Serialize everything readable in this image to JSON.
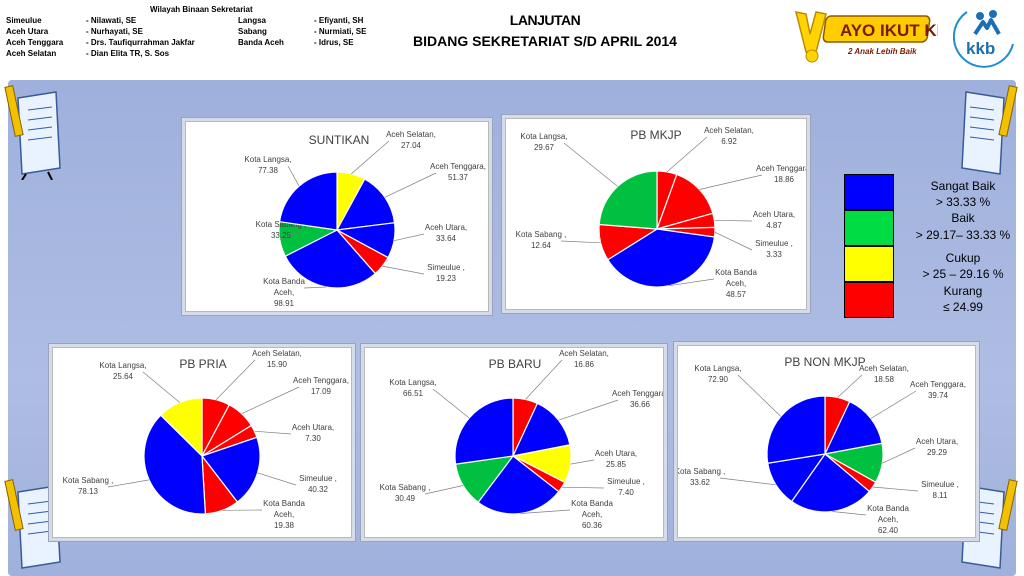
{
  "header": {
    "region_title": "Wilayah Binaan Sekretariat",
    "regions": [
      {
        "area": "Simeulue",
        "officer": "- Nilawati, SE",
        "area2": "Langsa",
        "officer2": "- Efiyanti, SH"
      },
      {
        "area": "Aceh Utara",
        "officer": "- Nurhayati, SE",
        "area2": "Sabang",
        "officer2": "- Nurmiati, SE"
      },
      {
        "area": "Aceh Tenggara",
        "officer": "-  Drs. Taufiqurrahman Jakfar",
        "area2": "Banda Aceh",
        "officer2": "- Idrus, SE"
      },
      {
        "area": "Aceh Selatan",
        "officer": "-  Dian Elita TR, S. Sos",
        "area2": "",
        "officer2": ""
      }
    ],
    "title_line1": "LANJUTAN",
    "title_line2": "BIDANG SEKRETARIAT S/D  APRIL 2014",
    "logo_ayo_text": "AYO IKUT KB",
    "logo_ayo_sub": "2 Anak Lebih Baik",
    "logo_kkb_text": "kkb"
  },
  "colors": {
    "blue": "#0000ff",
    "green": "#00c040",
    "yellow": "#ffff00",
    "red": "#ff0000"
  },
  "legend": [
    {
      "color": "#0000ff",
      "label": "Sangat Baik",
      "range": "> 33.33  %"
    },
    {
      "color": "#00dd44",
      "label": "Baik",
      "range": "> 29.17– 33.33 %"
    },
    {
      "color": "#ffff00",
      "label": "Cukup",
      "range": "> 25 – 29.16 %"
    },
    {
      "color": "#ff0000",
      "label": "Kurang",
      "range": "≤ 24.99"
    }
  ],
  "chart_data": [
    {
      "type": "pie",
      "title": "SUNTIKAN",
      "slices": [
        {
          "name": "Aceh Selatan,",
          "value": 27.04,
          "color": "#ffff00"
        },
        {
          "name": "Aceh Tenggara,",
          "value": 51.37,
          "color": "#0000ff"
        },
        {
          "name": "Aceh Utara,",
          "value": 33.64,
          "color": "#0000ff"
        },
        {
          "name": "Simeulue ,",
          "value": 19.23,
          "color": "#ff0000"
        },
        {
          "name": "Kota Banda Aceh,",
          "value": 98.91,
          "color": "#0000ff"
        },
        {
          "name": "Kota Sabang ,",
          "value": 33.25,
          "color": "#00c040"
        },
        {
          "name": "Kota Langsa,",
          "value": 77.38,
          "color": "#0000ff"
        }
      ]
    },
    {
      "type": "pie",
      "title": "PB  MKJP",
      "slices": [
        {
          "name": "Aceh Selatan,",
          "value": 6.92,
          "color": "#ff0000"
        },
        {
          "name": "Aceh Tenggara,",
          "value": 18.86,
          "color": "#ff0000"
        },
        {
          "name": "Aceh Utara,",
          "value": 4.87,
          "color": "#ff0000"
        },
        {
          "name": "Simeulue ,",
          "value": 3.33,
          "color": "#ff0000"
        },
        {
          "name": "Kota Banda Aceh,",
          "value": 48.57,
          "color": "#0000ff"
        },
        {
          "name": "Kota Sabang ,",
          "value": 12.64,
          "color": "#ff0000"
        },
        {
          "name": "Kota Langsa,",
          "value": 29.67,
          "color": "#00c040"
        }
      ]
    },
    {
      "type": "pie",
      "title": "PB PRIA",
      "slices": [
        {
          "name": "Aceh Selatan,",
          "value": 15.9,
          "color": "#ff0000"
        },
        {
          "name": "Aceh Tenggara,",
          "value": 17.09,
          "color": "#ff0000"
        },
        {
          "name": "Aceh Utara,",
          "value": 7.3,
          "color": "#ff0000"
        },
        {
          "name": "Simeulue ,",
          "value": 40.32,
          "color": "#0000ff"
        },
        {
          "name": "Kota Banda Aceh,",
          "value": 19.38,
          "color": "#ff0000"
        },
        {
          "name": "Kota Sabang ,",
          "value": 78.13,
          "color": "#0000ff"
        },
        {
          "name": "Kota Langsa,",
          "value": 25.64,
          "color": "#ffff00"
        }
      ]
    },
    {
      "type": "pie",
      "title": "PB BARU",
      "slices": [
        {
          "name": "Aceh Selatan,",
          "value": 16.86,
          "color": "#ff0000"
        },
        {
          "name": "Aceh Tenggara,",
          "value": 36.66,
          "color": "#0000ff"
        },
        {
          "name": "Aceh Utara,",
          "value": 25.85,
          "color": "#ffff00"
        },
        {
          "name": "Simeulue ,",
          "value": 7.4,
          "color": "#ff0000"
        },
        {
          "name": "Kota Banda Aceh,",
          "value": 60.36,
          "color": "#0000ff"
        },
        {
          "name": "Kota Sabang ,",
          "value": 30.49,
          "color": "#00c040"
        },
        {
          "name": "Kota Langsa,",
          "value": 66.51,
          "color": "#0000ff"
        }
      ]
    },
    {
      "type": "pie",
      "title": "PB NON MKJP",
      "slices": [
        {
          "name": "Aceh Selatan,",
          "value": 18.58,
          "color": "#ff0000"
        },
        {
          "name": "Aceh Tenggara,",
          "value": 39.74,
          "color": "#0000ff"
        },
        {
          "name": "Aceh Utara,",
          "value": 29.29,
          "color": "#00c040"
        },
        {
          "name": "Simeulue ,",
          "value": 8.11,
          "color": "#ff0000"
        },
        {
          "name": "Kota Banda Aceh,",
          "value": 62.4,
          "color": "#0000ff"
        },
        {
          "name": "Kota Sabang ,",
          "value": 33.62,
          "color": "#0000ff"
        },
        {
          "name": "Kota Langsa,",
          "value": 72.9,
          "color": "#0000ff"
        }
      ]
    }
  ]
}
